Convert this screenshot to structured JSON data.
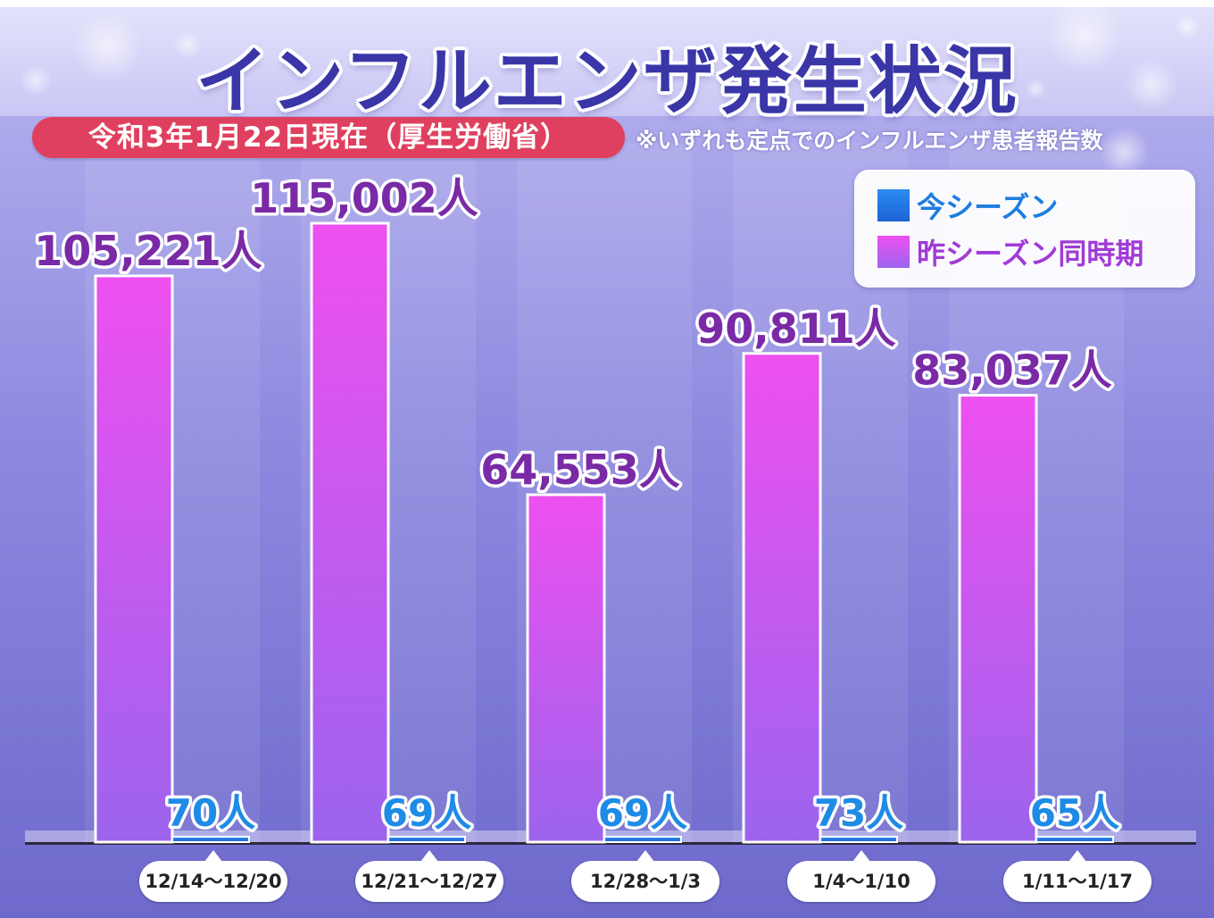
{
  "title": "インフルエンザ発生状況",
  "date_note": "令和3年1月22日現在（厚生労働省）",
  "footnote": "※いずれも定点でのインフルエンザ患者報告数",
  "colors": {
    "current": "#1e7de0",
    "previous": "#d84ff0",
    "date_pill": "#e0405f",
    "title": "#3a36a8"
  },
  "legend": [
    {
      "label": "今シーズン",
      "color": "#1e7de0",
      "series": "current"
    },
    {
      "label": "昨シーズン同時期",
      "color": "#d84ff0",
      "series": "previous"
    }
  ],
  "chart_data": {
    "type": "bar",
    "title": "インフルエンザ発生状況",
    "categories": [
      "12/14〜12/20",
      "12/21〜12/27",
      "12/28〜1/3",
      "1/4〜1/10",
      "1/11〜1/17"
    ],
    "series": [
      {
        "name": "昨シーズン同時期",
        "values": [
          105221,
          115002,
          64553,
          90811,
          83037
        ],
        "labels": [
          "105,221人",
          "115,002人",
          "64,553人",
          "90,811人",
          "83,037人"
        ],
        "color": "#d84ff0"
      },
      {
        "name": "今シーズン",
        "values": [
          70,
          69,
          69,
          73,
          65
        ],
        "labels": [
          "70人",
          "69人",
          "69人",
          "73人",
          "65人"
        ],
        "color": "#1e7de0"
      }
    ],
    "unit": "人",
    "ylim": [
      0,
      115002
    ],
    "grid": false,
    "legend_position": "top-right"
  }
}
